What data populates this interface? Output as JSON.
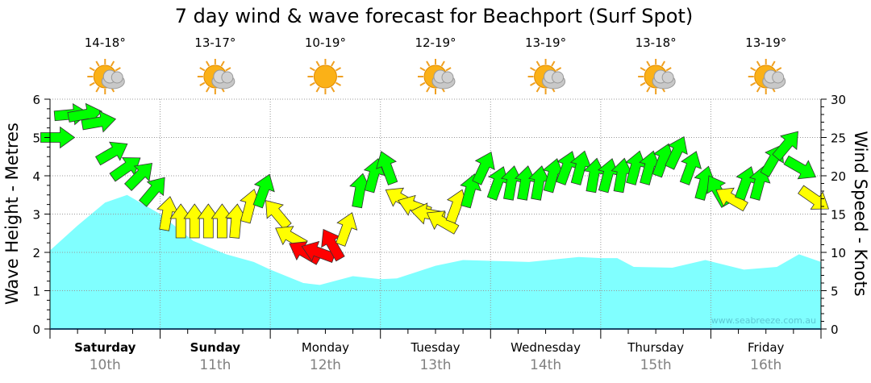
{
  "chart_data": {
    "type": "area+arrows",
    "title": "7 day wind & wave forecast for Beachport  (Surf Spot)",
    "ylabel_left": "Wave Height - Metres",
    "ylabel_right": "Wind Speed - Knots",
    "ylim_left": [
      0,
      6
    ],
    "ylim_right": [
      0,
      30
    ],
    "yticks_left": [
      "0",
      "1",
      "2",
      "3",
      "4",
      "5",
      "6"
    ],
    "yticks_right": [
      "0",
      "5",
      "10",
      "15",
      "20",
      "25",
      "30"
    ],
    "grid": true,
    "days": [
      {
        "name": "Saturday",
        "date": "10th",
        "bold": true,
        "temp": "14-18°",
        "icon": "sun-cloud"
      },
      {
        "name": "Sunday",
        "date": "11th",
        "bold": true,
        "temp": "13-17°",
        "icon": "sun-cloud"
      },
      {
        "name": "Monday",
        "date": "12th",
        "bold": false,
        "temp": "10-19°",
        "icon": "sun"
      },
      {
        "name": "Tuesday",
        "date": "13th",
        "bold": false,
        "temp": "12-19°",
        "icon": "sun-cloud"
      },
      {
        "name": "Wednesday",
        "date": "14th",
        "bold": false,
        "temp": "13-19°",
        "icon": "sun-cloud"
      },
      {
        "name": "Thursday",
        "date": "15th",
        "bold": false,
        "temp": "13-18°",
        "icon": "sun-cloud"
      },
      {
        "name": "Friday",
        "date": "16th",
        "bold": false,
        "temp": "13-19°",
        "icon": "sun-cloud"
      }
    ],
    "wave_height": {
      "name": "Wave Height (m)",
      "x_days": [
        0,
        0.25,
        0.5,
        0.7,
        1.0,
        1.3,
        1.6,
        1.85,
        2.0,
        2.3,
        2.45,
        2.75,
        3.0,
        3.15,
        3.5,
        3.75,
        4.0,
        4.35,
        4.8,
        5.0,
        5.15,
        5.3,
        5.65,
        5.95,
        6.3,
        6.6,
        6.8,
        7.0
      ],
      "values": [
        2.05,
        2.7,
        3.3,
        3.5,
        3.0,
        2.3,
        1.95,
        1.75,
        1.55,
        1.2,
        1.15,
        1.38,
        1.3,
        1.32,
        1.65,
        1.8,
        1.78,
        1.75,
        1.88,
        1.85,
        1.85,
        1.62,
        1.6,
        1.8,
        1.55,
        1.62,
        1.95,
        1.75
      ],
      "color": "#80ffff"
    },
    "wind": {
      "name": "Wind Speed (knots)",
      "interval_hours": 3,
      "speeds": [
        25,
        28,
        28,
        27,
        23,
        21,
        20,
        18,
        15,
        14,
        14,
        14,
        14,
        14,
        16,
        18,
        15,
        12,
        10,
        10,
        11,
        13,
        18,
        20,
        21,
        17,
        16,
        15,
        14,
        16,
        18,
        21,
        19,
        19,
        19,
        19,
        20,
        21,
        21,
        20,
        20,
        20,
        21,
        21,
        22,
        23,
        21,
        19,
        18,
        17,
        19,
        19,
        22,
        24,
        21,
        17
      ],
      "bearings": [
        90,
        85,
        80,
        80,
        60,
        55,
        45,
        40,
        10,
        0,
        0,
        0,
        0,
        5,
        15,
        20,
        320,
        300,
        300,
        290,
        330,
        20,
        10,
        15,
        340,
        300,
        290,
        280,
        300,
        20,
        15,
        25,
        20,
        10,
        10,
        10,
        15,
        20,
        15,
        10,
        15,
        10,
        15,
        15,
        20,
        25,
        20,
        15,
        330,
        300,
        20,
        15,
        30,
        40,
        120,
        125
      ],
      "colors": {
        "strong": "#00ff00",
        "moderate": "#ffff00",
        "light": "#ff0000"
      },
      "thresholds": {
        "light_below": 12,
        "strong_from": 17.5
      }
    },
    "watermark": "www.seabreeze.com.au"
  }
}
